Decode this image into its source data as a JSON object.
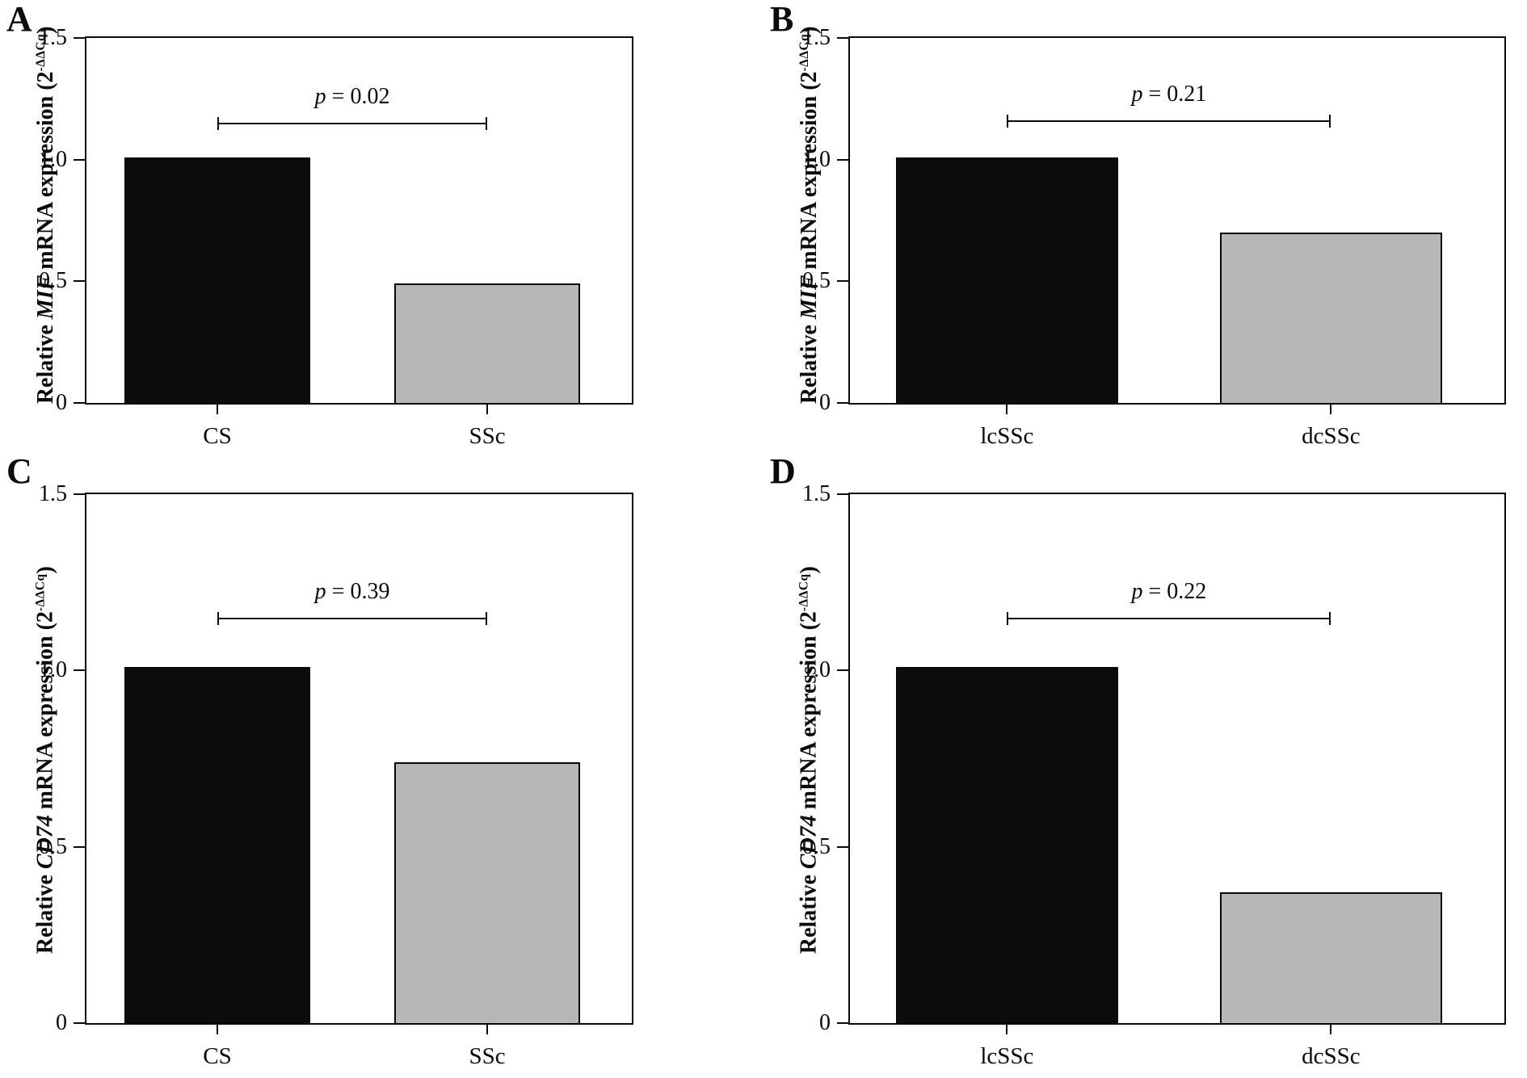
{
  "background_color": "#ffffff",
  "bar_outline_color": "#0a0a0a",
  "chart_data": [
    {
      "type": "bar",
      "panel": "A",
      "title": "",
      "xlabel": "",
      "ylabel": "Relative MIF mRNA expression (2^-ΔΔCq)",
      "ylabel_parts": {
        "prefix": "Relative ",
        "gene": "MIF",
        "mid": " mRNA expression (2",
        "sup": "-ΔΔCq",
        "end": ")"
      },
      "categories": [
        "CS",
        "SSc"
      ],
      "values": [
        1.01,
        0.49
      ],
      "bar_colors": [
        "#0c0c0c",
        "#b7b7b7"
      ],
      "ylim": [
        0,
        1.5
      ],
      "yticks": [
        0,
        0.5,
        1.0,
        1.5
      ],
      "ytick_labels": [
        "0",
        "0.5",
        "1.0",
        "1.5"
      ],
      "annotation": {
        "text": "p = 0.02",
        "p_italic": "p",
        "p_rest": " = 0.02",
        "bracket_y": 1.15
      },
      "grid": false,
      "legend": "none"
    },
    {
      "type": "bar",
      "panel": "B",
      "title": "",
      "xlabel": "",
      "ylabel": "Relative MIF mRNA expression (2^-ΔΔCq)",
      "ylabel_parts": {
        "prefix": "Relative ",
        "gene": "MIF",
        "mid": " mRNA expression (2",
        "sup": "-ΔΔCq",
        "end": ")"
      },
      "categories": [
        "lcSSc",
        "dcSSc"
      ],
      "values": [
        1.01,
        0.7
      ],
      "bar_colors": [
        "#0c0c0c",
        "#b7b7b7"
      ],
      "ylim": [
        0,
        1.5
      ],
      "yticks": [
        0,
        0.5,
        1.0,
        1.5
      ],
      "ytick_labels": [
        "0",
        "0.5",
        "1.0",
        "1.5"
      ],
      "annotation": {
        "text": "p = 0.21",
        "p_italic": "p",
        "p_rest": " = 0.21",
        "bracket_y": 1.16
      },
      "grid": false,
      "legend": "none"
    },
    {
      "type": "bar",
      "panel": "C",
      "title": "",
      "xlabel": "",
      "ylabel": "Relative CD74 mRNA expression (2^-ΔΔCq)",
      "ylabel_parts": {
        "prefix": "Relative ",
        "gene": "CD74",
        "mid": " mRNA expression (2",
        "sup": "-ΔΔCq",
        "end": ")"
      },
      "categories": [
        "CS",
        "SSc"
      ],
      "values": [
        1.01,
        0.74
      ],
      "bar_colors": [
        "#0c0c0c",
        "#b7b7b7"
      ],
      "ylim": [
        0,
        1.5
      ],
      "yticks": [
        0,
        0.5,
        1.0,
        1.5
      ],
      "ytick_labels": [
        "0",
        "0.5",
        "1.0",
        "1.5"
      ],
      "annotation": {
        "text": "p = 0.39",
        "p_italic": "p",
        "p_rest": " = 0.39",
        "bracket_y": 1.15
      },
      "grid": false,
      "legend": "none"
    },
    {
      "type": "bar",
      "panel": "D",
      "title": "",
      "xlabel": "",
      "ylabel": "Relative CD74 mRNA expression (2^-ΔΔCq)",
      "ylabel_parts": {
        "prefix": "Relative ",
        "gene": "CD74",
        "mid": " mRNA expression (2",
        "sup": "-ΔΔCq",
        "end": ")"
      },
      "categories": [
        "lcSSc",
        "dcSSc"
      ],
      "values": [
        1.01,
        0.37
      ],
      "bar_colors": [
        "#0c0c0c",
        "#b7b7b7"
      ],
      "ylim": [
        0,
        1.5
      ],
      "yticks": [
        0,
        0.5,
        1.0,
        1.5
      ],
      "ytick_labels": [
        "0",
        "0.5",
        "1.0",
        "1.5"
      ],
      "annotation": {
        "text": "p = 0.22",
        "p_italic": "p",
        "p_rest": " = 0.22",
        "bracket_y": 1.15
      },
      "grid": false,
      "legend": "none"
    }
  ]
}
